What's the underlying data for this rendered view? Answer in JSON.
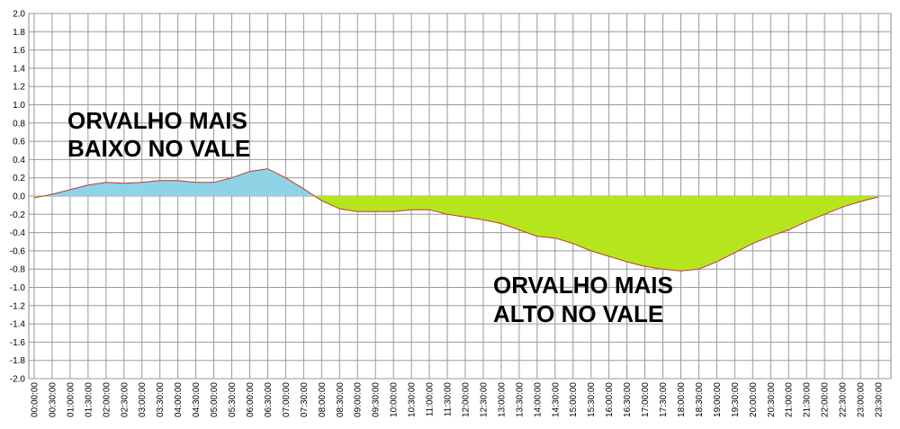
{
  "chart_data": {
    "type": "area",
    "categories": [
      "00:00:00",
      "00:30:00",
      "01:00:00",
      "01:30:00",
      "02:00:00",
      "02:30:00",
      "03:00:00",
      "03:30:00",
      "04:00:00",
      "04:30:00",
      "05:00:00",
      "05:30:00",
      "06:00:00",
      "06:30:00",
      "07:00:00",
      "07:30:00",
      "08:00:00",
      "08:30:00",
      "09:00:00",
      "09:30:00",
      "10:00:00",
      "10:30:00",
      "11:00:00",
      "11:30:00",
      "12:00:00",
      "12:30:00",
      "13:00:00",
      "13:30:00",
      "14:00:00",
      "14:30:00",
      "15:00:00",
      "15:30:00",
      "16:00:00",
      "16:30:00",
      "17:00:00",
      "17:30:00",
      "18:00:00",
      "18:30:00",
      "19:00:00",
      "19:30:00",
      "20:00:00",
      "20:30:00",
      "21:00:00",
      "21:30:00",
      "22:00:00",
      "22:30:00",
      "23:00:00",
      "23:30:00"
    ],
    "values": [
      -0.02,
      0.02,
      0.07,
      0.12,
      0.15,
      0.14,
      0.15,
      0.17,
      0.17,
      0.15,
      0.15,
      0.2,
      0.27,
      0.3,
      0.2,
      0.08,
      -0.05,
      -0.14,
      -0.17,
      -0.17,
      -0.17,
      -0.15,
      -0.15,
      -0.2,
      -0.23,
      -0.26,
      -0.3,
      -0.37,
      -0.44,
      -0.46,
      -0.52,
      -0.6,
      -0.66,
      -0.72,
      -0.77,
      -0.8,
      -0.82,
      -0.8,
      -0.72,
      -0.62,
      -0.52,
      -0.44,
      -0.37,
      -0.28,
      -0.2,
      -0.12,
      -0.06,
      -0.01
    ],
    "color": "#c0392b",
    "fill_above": "#8fd3e6",
    "fill_below": "#b5e61d",
    "ylim": [
      -2,
      2
    ],
    "yticks": [
      {
        "value": 2,
        "label": "2.0"
      },
      1.8,
      1.6,
      1.4,
      1.2,
      {
        "value": 1,
        "label": "1.0"
      },
      0.8,
      0.6,
      0.4,
      0.2,
      {
        "value": 0,
        "label": "0.0"
      },
      -0.2,
      -0.4,
      -0.6,
      -0.8,
      {
        "value": -1,
        "label": "-1.0"
      },
      -1.2,
      -1.4,
      -1.6,
      -1.8,
      {
        "value": -2,
        "label": "-2.0"
      }
    ],
    "grid": true,
    "annotations": [
      {
        "lines": [
          "ORVALHO MAIS",
          "BAIXO NO VALE"
        ],
        "color": "#3f48cc"
      },
      {
        "lines": [
          "ORVALHO MAIS",
          "ALTO NO VALE"
        ],
        "color": "#22b14c"
      }
    ]
  }
}
